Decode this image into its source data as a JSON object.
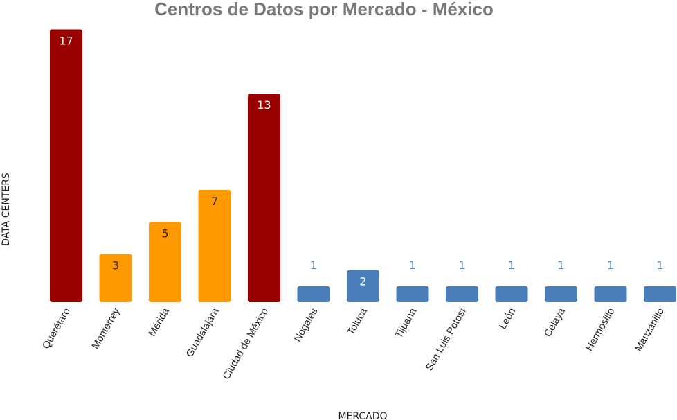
{
  "chart_data": {
    "type": "bar",
    "title": "Centros de Datos por Mercado - México",
    "xlabel": "MERCADO",
    "ylabel": "DATA CENTERS",
    "categories": [
      "Querétaro",
      "Monterrey",
      "Mérida",
      "Guadalajara",
      "Ciudad de México",
      "Nogales",
      "Toluca",
      "Tijuana",
      "San Luis Potosí",
      "León",
      "Celaya",
      "Hermosillo",
      "Manzanillo"
    ],
    "values": [
      17,
      3,
      5,
      7,
      13,
      1,
      2,
      1,
      1,
      1,
      1,
      1,
      1
    ],
    "bar_colors": [
      "#990000",
      "#ff9900",
      "#ff9900",
      "#ff9900",
      "#990000",
      "#4a7ebb",
      "#4a7ebb",
      "#4a7ebb",
      "#4a7ebb",
      "#4a7ebb",
      "#4a7ebb",
      "#4a7ebb",
      "#4a7ebb"
    ],
    "label_colors": [
      "#ffffff",
      "#222222",
      "#222222",
      "#222222",
      "#ffffff",
      "#4a7ebb",
      "#ffffff",
      "#4a7ebb",
      "#4a7ebb",
      "#4a7ebb",
      "#4a7ebb",
      "#4a7ebb",
      "#4a7ebb"
    ],
    "label_placement": [
      "inside",
      "inside",
      "inside",
      "inside",
      "inside",
      "above",
      "inside",
      "above",
      "above",
      "above",
      "above",
      "above",
      "above"
    ],
    "ylim": [
      0,
      17
    ],
    "grid": false,
    "legend": "none"
  }
}
